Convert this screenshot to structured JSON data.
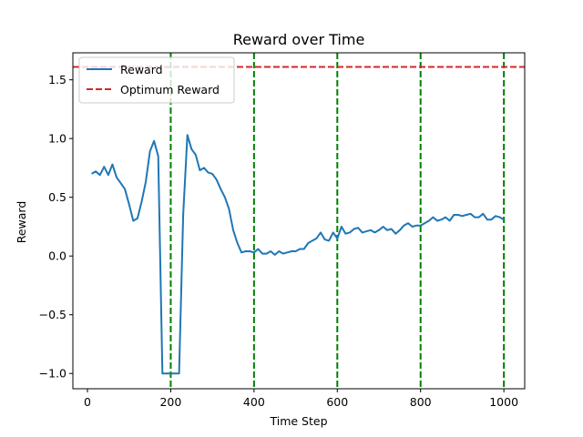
{
  "chart_data": {
    "type": "line",
    "title": "Reward over Time",
    "xlabel": "Time Step",
    "ylabel": "Reward",
    "xlim": [
      -35,
      1050
    ],
    "ylim": [
      -1.13,
      1.73
    ],
    "xticks": [
      0,
      200,
      400,
      600,
      800,
      1000
    ],
    "yticks": [
      -1.0,
      -0.5,
      0.0,
      0.5,
      1.0,
      1.5
    ],
    "xtick_labels": [
      "0",
      "200",
      "400",
      "600",
      "800",
      "1000"
    ],
    "ytick_labels": [
      "−1.0",
      "−0.5",
      "0.0",
      "0.5",
      "1.0",
      "1.5"
    ],
    "grid": false,
    "legend_position": "top-left",
    "series": [
      {
        "name": "Reward",
        "color": "#1f77b4",
        "style": "solid",
        "x": [
          10,
          20,
          30,
          40,
          50,
          60,
          70,
          80,
          90,
          100,
          110,
          120,
          130,
          140,
          150,
          160,
          170,
          180,
          190,
          200,
          210,
          220,
          230,
          240,
          250,
          260,
          270,
          280,
          290,
          300,
          310,
          320,
          330,
          340,
          350,
          360,
          370,
          380,
          390,
          400,
          410,
          420,
          430,
          440,
          450,
          460,
          470,
          480,
          490,
          500,
          510,
          520,
          530,
          540,
          550,
          560,
          570,
          580,
          590,
          600,
          610,
          620,
          630,
          640,
          650,
          660,
          670,
          680,
          690,
          700,
          710,
          720,
          730,
          740,
          750,
          760,
          770,
          780,
          790,
          800,
          810,
          820,
          830,
          840,
          850,
          860,
          870,
          880,
          890,
          900,
          910,
          920,
          930,
          940,
          950,
          960,
          970,
          980,
          990,
          1000
        ],
        "y": [
          0.7,
          0.72,
          0.69,
          0.76,
          0.69,
          0.78,
          0.67,
          0.62,
          0.57,
          0.44,
          0.3,
          0.32,
          0.46,
          0.63,
          0.89,
          0.98,
          0.85,
          -1.0,
          -1.0,
          -1.0,
          -1.0,
          -1.0,
          0.35,
          1.03,
          0.91,
          0.86,
          0.73,
          0.75,
          0.71,
          0.7,
          0.65,
          0.57,
          0.5,
          0.4,
          0.22,
          0.11,
          0.03,
          0.04,
          0.04,
          0.03,
          0.06,
          0.02,
          0.02,
          0.04,
          0.01,
          0.04,
          0.02,
          0.03,
          0.04,
          0.04,
          0.06,
          0.06,
          0.11,
          0.13,
          0.15,
          0.2,
          0.14,
          0.13,
          0.2,
          0.15,
          0.25,
          0.19,
          0.2,
          0.23,
          0.24,
          0.2,
          0.21,
          0.22,
          0.2,
          0.22,
          0.25,
          0.22,
          0.23,
          0.19,
          0.22,
          0.26,
          0.28,
          0.25,
          0.26,
          0.26,
          0.28,
          0.3,
          0.33,
          0.3,
          0.31,
          0.33,
          0.3,
          0.35,
          0.35,
          0.34,
          0.35,
          0.36,
          0.33,
          0.33,
          0.36,
          0.31,
          0.31,
          0.34,
          0.33,
          0.31
        ]
      },
      {
        "name": "Optimum Reward",
        "color": "#d62728",
        "style": "dashed",
        "type": "hline",
        "y": 1.61
      }
    ],
    "vlines": {
      "color": "#008000",
      "style": "dashed",
      "x": [
        200,
        400,
        600,
        800,
        1000
      ]
    }
  }
}
